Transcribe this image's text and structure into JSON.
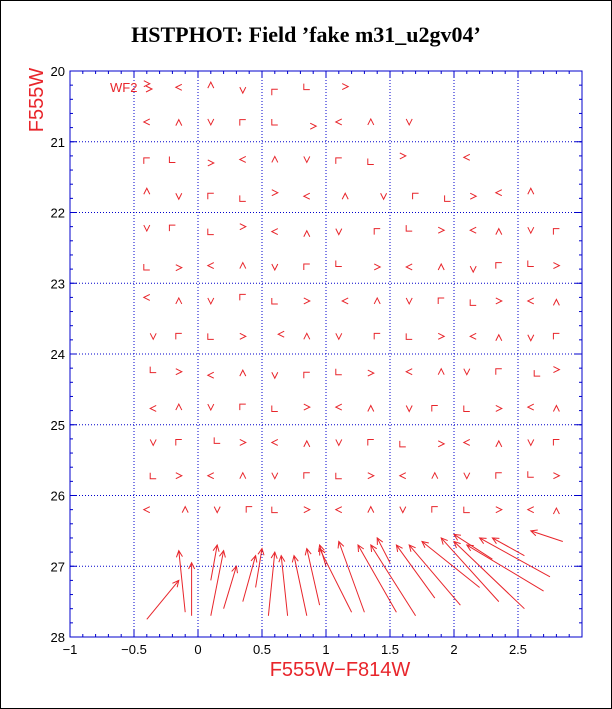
{
  "title": "HSTPHOT: Field ’fake m31_u2gv04’",
  "colors": {
    "axis": "#0000cc",
    "grid": "#0000cc",
    "arrows": "#e8252b",
    "labels": "#e8252b",
    "ticks_text": "#000000"
  },
  "chart_data": {
    "type": "quiver",
    "xlabel": "F555W−F814W",
    "ylabel": "F555W",
    "annotation": "WF2",
    "xlim": [
      -1,
      3
    ],
    "ylim": [
      28,
      20
    ],
    "y_inverted": true,
    "grid": true,
    "xticks": [
      "−1",
      "−0.5",
      "0",
      "0.5",
      "1",
      "1.5",
      "2",
      "2.5"
    ],
    "xtick_values": [
      -1,
      -0.5,
      0,
      0.5,
      1,
      1.5,
      2,
      2.5
    ],
    "yticks": [
      "20",
      "21",
      "22",
      "23",
      "24",
      "25",
      "26",
      "27",
      "28"
    ],
    "ytick_values": [
      20,
      21,
      22,
      23,
      24,
      25,
      26,
      27,
      28
    ],
    "x_gridlines": [
      -0.5,
      0,
      0.5,
      1,
      1.5,
      2,
      2.5
    ],
    "y_gridlines": [
      21,
      22,
      23,
      24,
      25,
      26,
      27
    ],
    "small_markers": [
      {
        "x": -0.4,
        "y": 20.18
      },
      {
        "x": -0.15,
        "y": 20.23
      },
      {
        "x": 0.1,
        "y": 20.2
      },
      {
        "x": 0.35,
        "y": 20.27
      },
      {
        "x": 0.6,
        "y": 20.3
      },
      {
        "x": 0.85,
        "y": 20.22
      },
      {
        "x": 1.15,
        "y": 20.22
      },
      {
        "x": -0.4,
        "y": 20.72
      },
      {
        "x": -0.15,
        "y": 20.73
      },
      {
        "x": 0.1,
        "y": 20.72
      },
      {
        "x": 0.35,
        "y": 20.73
      },
      {
        "x": 0.6,
        "y": 20.72
      },
      {
        "x": 0.9,
        "y": 20.78
      },
      {
        "x": 1.1,
        "y": 20.72
      },
      {
        "x": 1.35,
        "y": 20.72
      },
      {
        "x": 1.65,
        "y": 20.72
      },
      {
        "x": -0.4,
        "y": 21.27
      },
      {
        "x": -0.2,
        "y": 21.25
      },
      {
        "x": 0.1,
        "y": 21.3
      },
      {
        "x": 0.35,
        "y": 21.25
      },
      {
        "x": 0.6,
        "y": 21.25
      },
      {
        "x": 0.85,
        "y": 21.25
      },
      {
        "x": 1.1,
        "y": 21.27
      },
      {
        "x": 1.35,
        "y": 21.28
      },
      {
        "x": 1.6,
        "y": 21.2
      },
      {
        "x": 2.1,
        "y": 21.22
      },
      {
        "x": -0.4,
        "y": 21.7
      },
      {
        "x": -0.15,
        "y": 21.77
      },
      {
        "x": 0.1,
        "y": 21.77
      },
      {
        "x": 0.35,
        "y": 21.8
      },
      {
        "x": 0.6,
        "y": 21.72
      },
      {
        "x": 0.85,
        "y": 21.77
      },
      {
        "x": 1.15,
        "y": 21.77
      },
      {
        "x": 1.45,
        "y": 21.77
      },
      {
        "x": 1.7,
        "y": 21.77
      },
      {
        "x": 1.95,
        "y": 21.8
      },
      {
        "x": 2.15,
        "y": 21.77
      },
      {
        "x": 2.35,
        "y": 21.72
      },
      {
        "x": 2.6,
        "y": 21.7
      },
      {
        "x": -0.4,
        "y": 22.22
      },
      {
        "x": -0.2,
        "y": 22.22
      },
      {
        "x": 0.1,
        "y": 22.27
      },
      {
        "x": 0.35,
        "y": 22.2
      },
      {
        "x": 0.6,
        "y": 22.27
      },
      {
        "x": 0.85,
        "y": 22.3
      },
      {
        "x": 1.1,
        "y": 22.27
      },
      {
        "x": 1.4,
        "y": 22.27
      },
      {
        "x": 1.65,
        "y": 22.22
      },
      {
        "x": 1.9,
        "y": 22.25
      },
      {
        "x": 2.15,
        "y": 22.25
      },
      {
        "x": 2.35,
        "y": 22.27
      },
      {
        "x": 2.6,
        "y": 22.25
      },
      {
        "x": 2.8,
        "y": 22.27
      },
      {
        "x": -0.4,
        "y": 22.77
      },
      {
        "x": -0.15,
        "y": 22.78
      },
      {
        "x": 0.1,
        "y": 22.75
      },
      {
        "x": 0.35,
        "y": 22.75
      },
      {
        "x": 0.6,
        "y": 22.77
      },
      {
        "x": 0.85,
        "y": 22.77
      },
      {
        "x": 1.1,
        "y": 22.72
      },
      {
        "x": 1.4,
        "y": 22.77
      },
      {
        "x": 1.65,
        "y": 22.77
      },
      {
        "x": 1.9,
        "y": 22.77
      },
      {
        "x": 2.15,
        "y": 22.8
      },
      {
        "x": 2.35,
        "y": 22.75
      },
      {
        "x": 2.6,
        "y": 22.72
      },
      {
        "x": 2.8,
        "y": 22.75
      },
      {
        "x": -0.4,
        "y": 23.2
      },
      {
        "x": -0.15,
        "y": 23.25
      },
      {
        "x": 0.1,
        "y": 23.25
      },
      {
        "x": 0.35,
        "y": 23.2
      },
      {
        "x": 0.6,
        "y": 23.25
      },
      {
        "x": 0.85,
        "y": 23.25
      },
      {
        "x": 1.15,
        "y": 23.25
      },
      {
        "x": 1.4,
        "y": 23.25
      },
      {
        "x": 1.65,
        "y": 23.25
      },
      {
        "x": 1.9,
        "y": 23.25
      },
      {
        "x": 2.15,
        "y": 23.27
      },
      {
        "x": 2.35,
        "y": 23.25
      },
      {
        "x": 2.6,
        "y": 23.25
      },
      {
        "x": 2.8,
        "y": 23.27
      },
      {
        "x": -0.35,
        "y": 23.75
      },
      {
        "x": -0.15,
        "y": 23.75
      },
      {
        "x": 0.1,
        "y": 23.75
      },
      {
        "x": 0.35,
        "y": 23.75
      },
      {
        "x": 0.65,
        "y": 23.72
      },
      {
        "x": 0.85,
        "y": 23.75
      },
      {
        "x": 1.1,
        "y": 23.75
      },
      {
        "x": 1.4,
        "y": 23.75
      },
      {
        "x": 1.65,
        "y": 23.75
      },
      {
        "x": 1.9,
        "y": 23.75
      },
      {
        "x": 2.15,
        "y": 23.75
      },
      {
        "x": 2.35,
        "y": 23.77
      },
      {
        "x": 2.6,
        "y": 23.77
      },
      {
        "x": 2.8,
        "y": 23.75
      },
      {
        "x": -0.35,
        "y": 24.22
      },
      {
        "x": -0.15,
        "y": 24.25
      },
      {
        "x": 0.1,
        "y": 24.3
      },
      {
        "x": 0.35,
        "y": 24.27
      },
      {
        "x": 0.6,
        "y": 24.3
      },
      {
        "x": 0.85,
        "y": 24.3
      },
      {
        "x": 1.1,
        "y": 24.25
      },
      {
        "x": 1.35,
        "y": 24.27
      },
      {
        "x": 1.65,
        "y": 24.25
      },
      {
        "x": 1.9,
        "y": 24.25
      },
      {
        "x": 2.1,
        "y": 24.25
      },
      {
        "x": 2.35,
        "y": 24.25
      },
      {
        "x": 2.65,
        "y": 24.27
      },
      {
        "x": 2.8,
        "y": 24.22
      },
      {
        "x": -0.35,
        "y": 24.77
      },
      {
        "x": -0.15,
        "y": 24.75
      },
      {
        "x": 0.1,
        "y": 24.75
      },
      {
        "x": 0.35,
        "y": 24.75
      },
      {
        "x": 0.6,
        "y": 24.77
      },
      {
        "x": 0.85,
        "y": 24.75
      },
      {
        "x": 1.1,
        "y": 24.75
      },
      {
        "x": 1.35,
        "y": 24.77
      },
      {
        "x": 1.65,
        "y": 24.77
      },
      {
        "x": 1.85,
        "y": 24.77
      },
      {
        "x": 2.1,
        "y": 24.77
      },
      {
        "x": 2.35,
        "y": 24.77
      },
      {
        "x": 2.6,
        "y": 24.75
      },
      {
        "x": 2.8,
        "y": 24.77
      },
      {
        "x": -0.35,
        "y": 25.25
      },
      {
        "x": -0.15,
        "y": 25.25
      },
      {
        "x": 0.15,
        "y": 25.22
      },
      {
        "x": 0.35,
        "y": 25.25
      },
      {
        "x": 0.6,
        "y": 25.25
      },
      {
        "x": 0.85,
        "y": 25.27
      },
      {
        "x": 1.1,
        "y": 25.25
      },
      {
        "x": 1.35,
        "y": 25.25
      },
      {
        "x": 1.6,
        "y": 25.27
      },
      {
        "x": 1.9,
        "y": 25.27
      },
      {
        "x": 2.1,
        "y": 25.25
      },
      {
        "x": 2.35,
        "y": 25.27
      },
      {
        "x": 2.6,
        "y": 25.25
      },
      {
        "x": 2.8,
        "y": 25.25
      },
      {
        "x": -0.35,
        "y": 25.72
      },
      {
        "x": -0.15,
        "y": 25.72
      },
      {
        "x": 0.1,
        "y": 25.72
      },
      {
        "x": 0.35,
        "y": 25.72
      },
      {
        "x": 0.6,
        "y": 25.72
      },
      {
        "x": 0.85,
        "y": 25.72
      },
      {
        "x": 1.1,
        "y": 25.72
      },
      {
        "x": 1.35,
        "y": 25.72
      },
      {
        "x": 1.6,
        "y": 25.72
      },
      {
        "x": 1.85,
        "y": 25.72
      },
      {
        "x": 2.1,
        "y": 25.72
      },
      {
        "x": 2.35,
        "y": 25.72
      },
      {
        "x": 2.6,
        "y": 25.7
      },
      {
        "x": 2.8,
        "y": 25.72
      },
      {
        "x": -0.4,
        "y": 26.2
      },
      {
        "x": -0.1,
        "y": 26.2
      },
      {
        "x": 0.15,
        "y": 26.2
      },
      {
        "x": 0.4,
        "y": 26.2
      },
      {
        "x": 0.6,
        "y": 26.2
      },
      {
        "x": 0.85,
        "y": 26.2
      },
      {
        "x": 1.1,
        "y": 26.2
      },
      {
        "x": 1.35,
        "y": 26.2
      },
      {
        "x": 1.6,
        "y": 26.2
      },
      {
        "x": 1.85,
        "y": 26.2
      },
      {
        "x": 2.1,
        "y": 26.2
      },
      {
        "x": 2.35,
        "y": 26.2
      },
      {
        "x": 2.6,
        "y": 26.2
      },
      {
        "x": 2.8,
        "y": 26.22
      }
    ],
    "long_arrows": [
      {
        "x1": -0.4,
        "y1": 27.75,
        "x2": -0.15,
        "y2": 27.2
      },
      {
        "x1": -0.1,
        "y1": 27.65,
        "x2": -0.15,
        "y2": 26.78
      },
      {
        "x1": -0.05,
        "y1": 27.7,
        "x2": -0.05,
        "y2": 26.95
      },
      {
        "x1": 0.1,
        "y1": 27.7,
        "x2": 0.2,
        "y2": 26.78
      },
      {
        "x1": 0.1,
        "y1": 27.2,
        "x2": 0.15,
        "y2": 26.7
      },
      {
        "x1": 0.2,
        "y1": 27.6,
        "x2": 0.3,
        "y2": 27.0
      },
      {
        "x1": 0.35,
        "y1": 27.5,
        "x2": 0.45,
        "y2": 26.85
      },
      {
        "x1": 0.45,
        "y1": 27.3,
        "x2": 0.5,
        "y2": 26.75
      },
      {
        "x1": 0.55,
        "y1": 27.7,
        "x2": 0.6,
        "y2": 26.8
      },
      {
        "x1": 0.7,
        "y1": 27.7,
        "x2": 0.65,
        "y2": 26.85
      },
      {
        "x1": 0.85,
        "y1": 27.7,
        "x2": 0.75,
        "y2": 26.85
      },
      {
        "x1": 0.95,
        "y1": 27.55,
        "x2": 0.85,
        "y2": 26.75
      },
      {
        "x1": 1.2,
        "y1": 27.65,
        "x2": 0.95,
        "y2": 26.75
      },
      {
        "x1": 1.3,
        "y1": 27.65,
        "x2": 1.1,
        "y2": 26.65
      },
      {
        "x1": 1.55,
        "y1": 27.65,
        "x2": 1.25,
        "y2": 26.7
      },
      {
        "x1": 1.7,
        "y1": 27.7,
        "x2": 1.35,
        "y2": 26.7
      },
      {
        "x1": 1.85,
        "y1": 27.45,
        "x2": 1.55,
        "y2": 26.7
      },
      {
        "x1": 2.05,
        "y1": 27.55,
        "x2": 1.65,
        "y2": 26.7
      },
      {
        "x1": 2.2,
        "y1": 27.3,
        "x2": 1.75,
        "y2": 26.65
      },
      {
        "x1": 2.35,
        "y1": 27.5,
        "x2": 1.9,
        "y2": 26.6
      },
      {
        "x1": 2.55,
        "y1": 27.6,
        "x2": 2.0,
        "y2": 26.65
      },
      {
        "x1": 2.7,
        "y1": 27.35,
        "x2": 2.1,
        "y2": 26.7
      },
      {
        "x1": 2.75,
        "y1": 27.15,
        "x2": 2.2,
        "y2": 26.6
      },
      {
        "x1": 2.55,
        "y1": 26.85,
        "x2": 2.3,
        "y2": 26.6
      },
      {
        "x1": 2.3,
        "y1": 26.9,
        "x2": 2.0,
        "y2": 26.55
      },
      {
        "x1": 2.85,
        "y1": 26.65,
        "x2": 2.6,
        "y2": 26.5
      },
      {
        "x1": 1.5,
        "y1": 26.95,
        "x2": 1.4,
        "y2": 26.6
      },
      {
        "x1": 1.0,
        "y1": 27.0,
        "x2": 0.95,
        "y2": 26.7
      }
    ]
  }
}
